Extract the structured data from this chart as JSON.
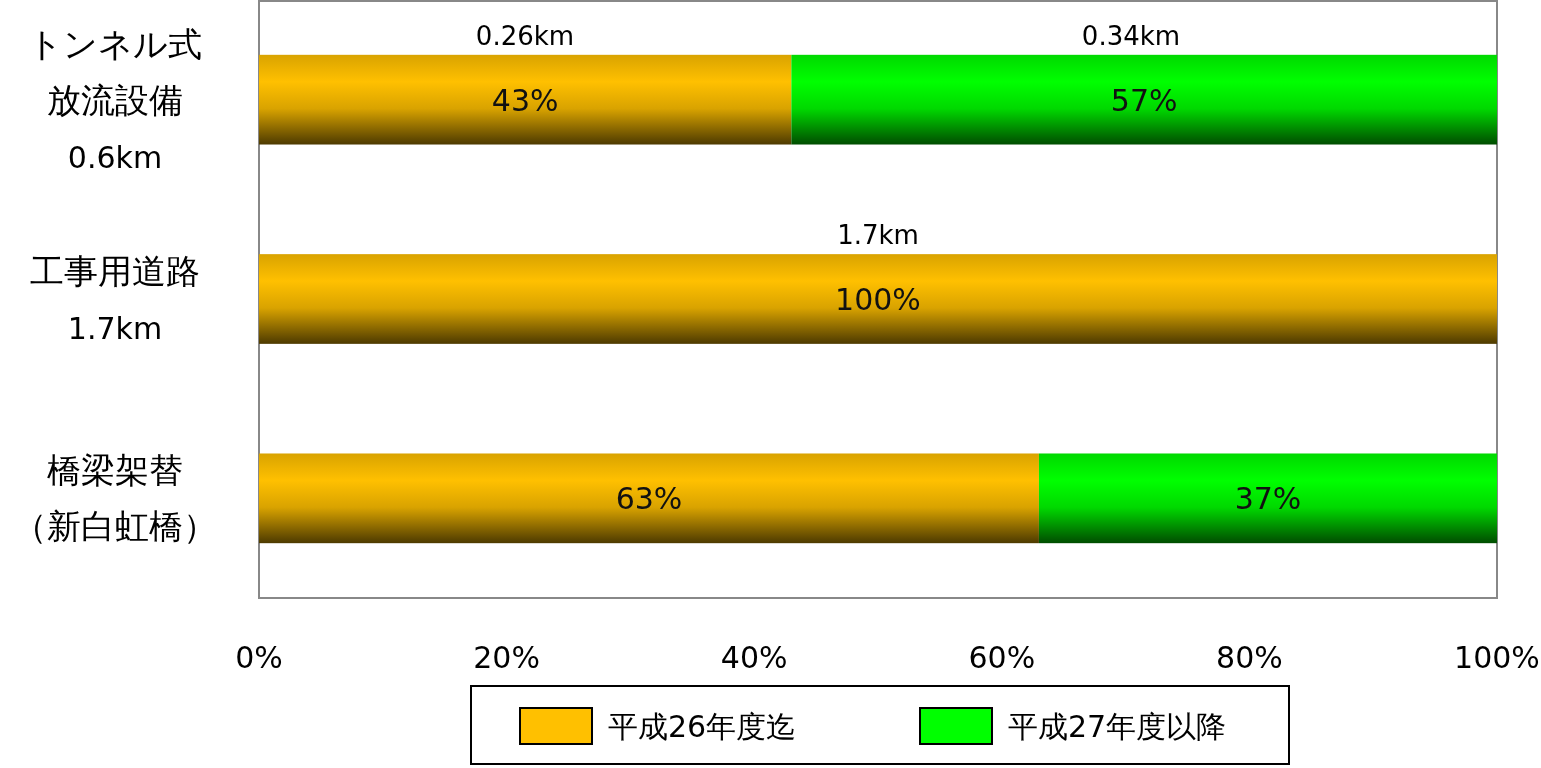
{
  "chart_data": {
    "type": "bar",
    "orientation": "horizontal",
    "stacked": true,
    "categories": [
      "トンネル式放流設備\n0.6km",
      "工事用道路\n1.7km",
      "橋梁架替（新白虹橋）"
    ],
    "series": [
      {
        "name": "平成26年度迄",
        "color": "#ffc000",
        "values": [
          43,
          100,
          63
        ],
        "value_labels": [
          "43%",
          "100%",
          "63%"
        ]
      },
      {
        "name": "平成27年度以降",
        "color": "#00ff00",
        "values": [
          57,
          0,
          37
        ],
        "value_labels": [
          "57%",
          null,
          "37%"
        ]
      }
    ],
    "xlim": [
      0,
      100
    ],
    "xticks": [
      {
        "value": 0,
        "label": "0%"
      },
      {
        "value": 20,
        "label": "20%"
      },
      {
        "value": 40,
        "label": "40%"
      },
      {
        "value": 60,
        "label": "60%"
      },
      {
        "value": 80,
        "label": "80%"
      },
      {
        "value": 100,
        "label": "100%"
      }
    ],
    "annotations": [
      "0.26km",
      "0.34km",
      "1.7km"
    ],
    "grid": false,
    "legend": "bottom"
  }
}
